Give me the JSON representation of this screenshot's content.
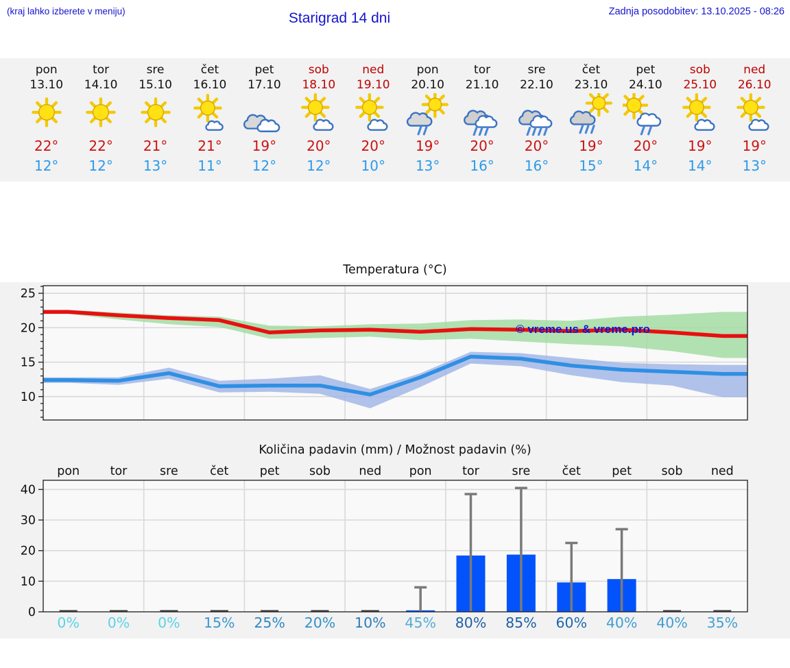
{
  "header": {
    "note": "(kraj lahko izberete v meniju)",
    "title": "Starigrad 14 dni",
    "updated": "Zadnja posodobitev: 13.10.2025 - 08:26"
  },
  "colors": {
    "header_blue": "#1414cf",
    "weekend_red": "#c00000",
    "high_temp": "#cc1111",
    "low_temp": "#2d9ae8",
    "temp_max_line": "#e81010",
    "temp_min_line": "#2f8fe3",
    "temp_max_band": "#9fdb9f",
    "temp_min_band": "#9db4e6",
    "bar_blue": "#0353fc",
    "whisker_gray": "#7a7a7a"
  },
  "days": [
    {
      "name": "pon",
      "date": "13.10",
      "weekend": false,
      "icon": "sunny",
      "high": "22°",
      "low": "12°"
    },
    {
      "name": "tor",
      "date": "14.10",
      "weekend": false,
      "icon": "sunny",
      "high": "22°",
      "low": "12°"
    },
    {
      "name": "sre",
      "date": "15.10",
      "weekend": false,
      "icon": "sunny",
      "high": "21°",
      "low": "13°"
    },
    {
      "name": "čet",
      "date": "16.10",
      "weekend": false,
      "icon": "mostly-sunny",
      "high": "21°",
      "low": "11°"
    },
    {
      "name": "pet",
      "date": "17.10",
      "weekend": false,
      "icon": "cloudy",
      "high": "19°",
      "low": "12°"
    },
    {
      "name": "sob",
      "date": "18.10",
      "weekend": true,
      "icon": "partly-cloudy",
      "high": "20°",
      "low": "12°"
    },
    {
      "name": "ned",
      "date": "19.10",
      "weekend": true,
      "icon": "partly-cloudy",
      "high": "20°",
      "low": "10°"
    },
    {
      "name": "pon",
      "date": "20.10",
      "weekend": false,
      "icon": "sun-rain-light",
      "high": "19°",
      "low": "13°"
    },
    {
      "name": "tor",
      "date": "21.10",
      "weekend": false,
      "icon": "rain",
      "high": "20°",
      "low": "16°"
    },
    {
      "name": "sre",
      "date": "22.10",
      "weekend": false,
      "icon": "rain-heavy",
      "high": "20°",
      "low": "16°"
    },
    {
      "name": "čet",
      "date": "23.10",
      "weekend": false,
      "icon": "sun-rain",
      "high": "19°",
      "low": "15°"
    },
    {
      "name": "pet",
      "date": "24.10",
      "weekend": false,
      "icon": "sun-shower",
      "high": "20°",
      "low": "14°"
    },
    {
      "name": "sob",
      "date": "25.10",
      "weekend": true,
      "icon": "partly-cloudy",
      "high": "19°",
      "low": "14°"
    },
    {
      "name": "ned",
      "date": "26.10",
      "weekend": true,
      "icon": "partly-cloudy",
      "high": "19°",
      "low": "13°"
    }
  ],
  "chart_data": [
    {
      "type": "line",
      "title": "Temperatura (°C)",
      "watermark": "© vreme.us & vreme.pro",
      "ylim": [
        6.6,
        26.1
      ],
      "yticks": [
        10,
        15,
        20,
        25
      ],
      "grid": true,
      "categories": [
        "pon",
        "tor",
        "sre",
        "čet",
        "pet",
        "sob",
        "ned",
        "pon",
        "tor",
        "sre",
        "čet",
        "pet",
        "sob",
        "ned"
      ],
      "series": [
        {
          "name": "max-temp",
          "color": "#e81010",
          "values": [
            22.3,
            21.8,
            21.4,
            21.1,
            19.3,
            19.6,
            19.7,
            19.4,
            19.8,
            19.7,
            19.5,
            19.7,
            19.3,
            18.8
          ]
        },
        {
          "name": "min-temp",
          "color": "#2f8fe3",
          "values": [
            12.4,
            12.3,
            13.4,
            11.5,
            11.6,
            11.6,
            10.3,
            12.8,
            15.8,
            15.5,
            14.5,
            13.9,
            13.6,
            13.3
          ]
        }
      ],
      "bands": [
        {
          "name": "max-temp-range",
          "color": "#9fdb9f",
          "upper": [
            22.6,
            22.2,
            21.8,
            21.6,
            20.3,
            20.2,
            20.5,
            20.6,
            21.1,
            21.2,
            21.0,
            21.6,
            21.9,
            22.3
          ],
          "lower": [
            22.0,
            21.2,
            20.5,
            20.1,
            18.4,
            18.5,
            18.7,
            18.2,
            18.4,
            18.0,
            17.6,
            17.3,
            16.6,
            15.6
          ]
        },
        {
          "name": "min-temp-range",
          "color": "#9db4e6",
          "upper": [
            12.8,
            12.8,
            14.2,
            12.3,
            12.6,
            13.1,
            11.1,
            13.4,
            16.5,
            16.3,
            15.6,
            14.9,
            14.7,
            14.6
          ],
          "lower": [
            12.0,
            11.7,
            12.6,
            10.6,
            10.7,
            10.4,
            8.3,
            11.4,
            14.8,
            14.4,
            13.1,
            12.1,
            11.6,
            9.9
          ]
        }
      ]
    },
    {
      "type": "bar",
      "title": "Količina padavin (mm) / Možnost padavin (%)",
      "ylim": [
        0,
        43
      ],
      "yticks": [
        0,
        10,
        20,
        30,
        40
      ],
      "grid": true,
      "categories": [
        "pon",
        "tor",
        "sre",
        "čet",
        "pet",
        "sob",
        "ned",
        "pon",
        "tor",
        "sre",
        "čet",
        "pet",
        "sob",
        "ned"
      ],
      "values": [
        0,
        0,
        0,
        0,
        0,
        0,
        0,
        0.5,
        18.4,
        18.7,
        9.6,
        10.7,
        0,
        0
      ],
      "error_high": [
        null,
        null,
        null,
        null,
        null,
        null,
        null,
        8,
        38.5,
        40.5,
        22.5,
        27,
        null,
        null
      ],
      "bar_color": "#0353fc",
      "probabilities": [
        "0%",
        "0%",
        "0%",
        "15%",
        "25%",
        "20%",
        "10%",
        "45%",
        "80%",
        "85%",
        "60%",
        "40%",
        "40%",
        "35%"
      ],
      "prob_colors": [
        "#5bd3e6",
        "#5bd3e6",
        "#5bd3e6",
        "#3b98cc",
        "#2f88c2",
        "#3191c7",
        "#2b7dba",
        "#56abd6",
        "#1c60a6",
        "#1c60a6",
        "#1e67ac",
        "#3f9ed1",
        "#3f9ed1",
        "#45a0d3"
      ]
    }
  ]
}
